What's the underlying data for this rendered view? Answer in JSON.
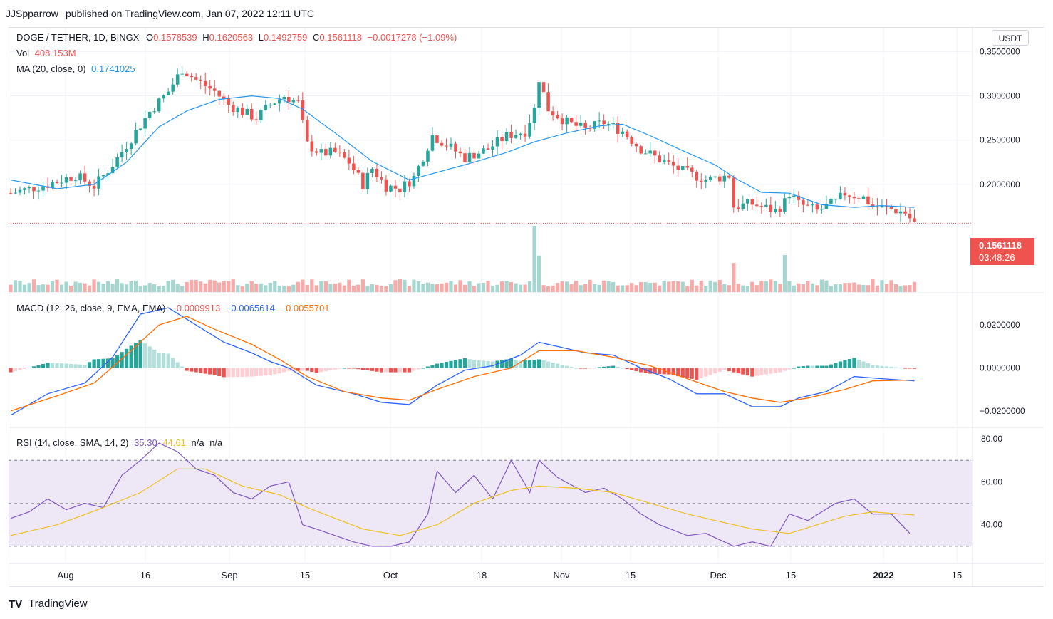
{
  "header": {
    "author": "JJSpparrow",
    "published": "published on TradingView.com, Jan 07, 2022 12:11 UTC"
  },
  "legend": {
    "symbol": "DOGE / TETHER, 1D, BINGX",
    "o_label": "O",
    "o_value": "0.1578539",
    "h_label": "H",
    "h_value": "0.1620563",
    "l_label": "L",
    "l_value": "0.1492759",
    "c_label": "C",
    "c_value": "0.1561118",
    "change": "−0.0017278 (−1.09%)",
    "vol_label": "Vol",
    "vol_value": "408.153M",
    "ma_label": "MA (20, close, 0)",
    "ma_value": "0.1741025",
    "macd_label": "MACD (12, 26, close, 9, EMA, EMA)",
    "macd_hist": "−0.0009913",
    "macd_line": "−0.0065614",
    "macd_signal": "−0.0055701",
    "rsi_label": "RSI (14, close, SMA, 14, 2)",
    "rsi_value": "35.30",
    "rsi_ma": "44.61",
    "rsi_na1": "n/a",
    "rsi_na2": "n/a"
  },
  "price_scale": {
    "currency": "USDT",
    "last_price": "0.1561118",
    "countdown": "03:48:26"
  },
  "footer": {
    "brand": "TradingView",
    "logo": "TV"
  },
  "colors": {
    "up": "#26a69a",
    "down": "#ef5350",
    "ma": "#2196f3",
    "macd": "#2962ff",
    "signal": "#ff6d00",
    "rsi": "#7e57c2",
    "rsi_ma": "#f0c020",
    "rsi_band": "#ede7f6"
  },
  "chart_data": [
    {
      "type": "candlestick",
      "title": "DOGE / TETHER, 1D, BINGX",
      "x_ticks": [
        "Aug",
        "16",
        "Sep",
        "15",
        "Oct",
        "18",
        "Nov",
        "15",
        "Dec",
        "15",
        "2022",
        "15"
      ],
      "y_ticks": [
        "0.3500000",
        "0.3000000",
        "0.2500000",
        "0.2000000"
      ],
      "ylim": [
        0.125,
        0.36
      ],
      "close_path": [
        [
          0,
          0.19
        ],
        [
          8,
          0.2
        ],
        [
          14,
          0.21
        ],
        [
          18,
          0.198
        ],
        [
          22,
          0.222
        ],
        [
          26,
          0.252
        ],
        [
          30,
          0.282
        ],
        [
          34,
          0.305
        ],
        [
          37,
          0.33
        ],
        [
          40,
          0.318
        ],
        [
          44,
          0.305
        ],
        [
          47,
          0.29
        ],
        [
          50,
          0.282
        ],
        [
          53,
          0.275
        ],
        [
          56,
          0.29
        ],
        [
          59,
          0.3
        ],
        [
          62,
          0.292
        ],
        [
          64,
          0.245
        ],
        [
          67,
          0.235
        ],
        [
          70,
          0.236
        ],
        [
          73,
          0.225
        ],
        [
          76,
          0.2
        ],
        [
          78,
          0.218
        ],
        [
          81,
          0.198
        ],
        [
          84,
          0.195
        ],
        [
          87,
          0.208
        ],
        [
          91,
          0.255
        ],
        [
          94,
          0.245
        ],
        [
          98,
          0.23
        ],
        [
          103,
          0.24
        ],
        [
          107,
          0.255
        ],
        [
          111,
          0.26
        ],
        [
          113,
          0.285
        ],
        [
          114,
          0.32
        ],
        [
          116,
          0.285
        ],
        [
          120,
          0.27
        ],
        [
          124,
          0.262
        ],
        [
          128,
          0.27
        ],
        [
          132,
          0.26
        ],
        [
          136,
          0.24
        ],
        [
          140,
          0.228
        ],
        [
          145,
          0.215
        ],
        [
          150,
          0.205
        ],
        [
          155,
          0.21
        ],
        [
          156,
          0.175
        ],
        [
          160,
          0.178
        ],
        [
          165,
          0.17
        ],
        [
          167,
          0.18
        ],
        [
          168,
          0.19
        ],
        [
          170,
          0.178
        ],
        [
          174,
          0.17
        ],
        [
          178,
          0.18
        ],
        [
          180,
          0.19
        ],
        [
          184,
          0.185
        ],
        [
          186,
          0.175
        ],
        [
          190,
          0.172
        ],
        [
          193,
          0.168
        ],
        [
          195,
          0.156
        ]
      ],
      "ma20_path": [
        [
          0,
          0.205
        ],
        [
          10,
          0.195
        ],
        [
          18,
          0.2
        ],
        [
          25,
          0.225
        ],
        [
          32,
          0.265
        ],
        [
          38,
          0.283
        ],
        [
          45,
          0.296
        ],
        [
          52,
          0.3
        ],
        [
          58,
          0.297
        ],
        [
          63,
          0.285
        ],
        [
          70,
          0.258
        ],
        [
          78,
          0.226
        ],
        [
          86,
          0.205
        ],
        [
          93,
          0.215
        ],
        [
          100,
          0.225
        ],
        [
          107,
          0.236
        ],
        [
          113,
          0.248
        ],
        [
          120,
          0.258
        ],
        [
          127,
          0.266
        ],
        [
          132,
          0.268
        ],
        [
          138,
          0.255
        ],
        [
          145,
          0.238
        ],
        [
          152,
          0.222
        ],
        [
          157,
          0.205
        ],
        [
          162,
          0.191
        ],
        [
          168,
          0.19
        ],
        [
          175,
          0.177
        ],
        [
          182,
          0.174
        ],
        [
          188,
          0.176
        ],
        [
          195,
          0.174
        ]
      ],
      "volume_spikes": [
        [
          113,
          1.0
        ],
        [
          114,
          0.55
        ],
        [
          156,
          0.44
        ],
        [
          167,
          0.56
        ]
      ],
      "ma_label": "MA (20, close, 0)",
      "ma_last": 0.1741025,
      "last": {
        "open": 0.1578539,
        "high": 0.1620563,
        "low": 0.1492759,
        "close": 0.1561118,
        "change": -0.0017278,
        "change_pct": -1.09
      },
      "volume_last": "408.153M"
    },
    {
      "type": "line",
      "title": "MACD (12, 26, close, 9, EMA, EMA)",
      "y_ticks": [
        "0.0200000",
        "0.0000000",
        "−0.0200000"
      ],
      "ylim": [
        -0.025,
        0.032
      ],
      "series": [
        {
          "name": "MACD",
          "color": "#2962ff",
          "points": [
            [
              0,
              -0.022
            ],
            [
              8,
              -0.012
            ],
            [
              16,
              -0.007
            ],
            [
              22,
              0.005
            ],
            [
              28,
              0.025
            ],
            [
              34,
              0.028
            ],
            [
              40,
              0.02
            ],
            [
              46,
              0.012
            ],
            [
              52,
              0.007
            ],
            [
              56,
              0.003
            ],
            [
              60,
              0.0
            ],
            [
              66,
              -0.008
            ],
            [
              74,
              -0.012
            ],
            [
              80,
              -0.016
            ],
            [
              86,
              -0.017
            ],
            [
              92,
              -0.008
            ],
            [
              98,
              -0.001
            ],
            [
              104,
              0.001
            ],
            [
              110,
              0.006
            ],
            [
              114,
              0.012
            ],
            [
              118,
              0.01
            ],
            [
              124,
              0.007
            ],
            [
              130,
              0.006
            ],
            [
              136,
              0.0
            ],
            [
              142,
              -0.005
            ],
            [
              148,
              -0.012
            ],
            [
              154,
              -0.012
            ],
            [
              160,
              -0.018
            ],
            [
              166,
              -0.018
            ],
            [
              170,
              -0.014
            ],
            [
              176,
              -0.011
            ],
            [
              182,
              -0.004
            ],
            [
              188,
              -0.005
            ],
            [
              195,
              -0.006
            ]
          ]
        },
        {
          "name": "Signal",
          "color": "#ff6d00",
          "points": [
            [
              0,
              -0.02
            ],
            [
              10,
              -0.013
            ],
            [
              18,
              -0.007
            ],
            [
              26,
              0.008
            ],
            [
              32,
              0.02
            ],
            [
              38,
              0.024
            ],
            [
              44,
              0.018
            ],
            [
              52,
              0.011
            ],
            [
              58,
              0.004
            ],
            [
              64,
              -0.004
            ],
            [
              72,
              -0.011
            ],
            [
              80,
              -0.014
            ],
            [
              86,
              -0.015
            ],
            [
              92,
              -0.01
            ],
            [
              100,
              -0.004
            ],
            [
              108,
              0.0
            ],
            [
              114,
              0.008
            ],
            [
              122,
              0.008
            ],
            [
              130,
              0.005
            ],
            [
              138,
              0.001
            ],
            [
              146,
              -0.005
            ],
            [
              154,
              -0.011
            ],
            [
              160,
              -0.014
            ],
            [
              166,
              -0.016
            ],
            [
              172,
              -0.014
            ],
            [
              180,
              -0.01
            ],
            [
              186,
              -0.006
            ],
            [
              195,
              -0.0056
            ]
          ]
        }
      ],
      "histogram_last": -0.0009913,
      "macd_last": -0.0065614,
      "signal_last": -0.0055701
    },
    {
      "type": "line",
      "title": "RSI (14, close, SMA, 14, 2)",
      "y_ticks": [
        "80.00",
        "60.00",
        "40.00"
      ],
      "ylim": [
        22,
        85
      ],
      "bands": [
        30,
        50,
        70
      ],
      "series": [
        {
          "name": "RSI",
          "color": "#7e57c2",
          "points": [
            [
              0,
              43
            ],
            [
              4,
              46
            ],
            [
              8,
              52
            ],
            [
              12,
              47
            ],
            [
              16,
              50
            ],
            [
              20,
              48
            ],
            [
              24,
              63
            ],
            [
              28,
              70
            ],
            [
              32,
              78
            ],
            [
              36,
              74
            ],
            [
              40,
              66
            ],
            [
              44,
              63
            ],
            [
              48,
              55
            ],
            [
              52,
              52
            ],
            [
              56,
              58
            ],
            [
              60,
              60
            ],
            [
              63,
              40
            ],
            [
              66,
              38
            ],
            [
              70,
              35
            ],
            [
              74,
              32
            ],
            [
              78,
              30
            ],
            [
              82,
              30
            ],
            [
              86,
              32
            ],
            [
              90,
              45
            ],
            [
              92,
              65
            ],
            [
              96,
              55
            ],
            [
              100,
              63
            ],
            [
              104,
              52
            ],
            [
              108,
              70
            ],
            [
              112,
              55
            ],
            [
              114,
              70
            ],
            [
              118,
              62
            ],
            [
              124,
              55
            ],
            [
              128,
              57
            ],
            [
              132,
              52
            ],
            [
              136,
              45
            ],
            [
              140,
              40
            ],
            [
              146,
              35
            ],
            [
              150,
              36
            ],
            [
              154,
              32
            ],
            [
              156,
              30
            ],
            [
              160,
              32
            ],
            [
              164,
              30
            ],
            [
              168,
              45
            ],
            [
              172,
              42
            ],
            [
              178,
              50
            ],
            [
              182,
              52
            ],
            [
              186,
              45
            ],
            [
              190,
              45
            ],
            [
              194,
              36
            ]
          ]
        },
        {
          "name": "RSI MA",
          "color": "#f0c020",
          "points": [
            [
              0,
              35
            ],
            [
              10,
              40
            ],
            [
              20,
              48
            ],
            [
              28,
              55
            ],
            [
              36,
              66
            ],
            [
              42,
              66
            ],
            [
              50,
              58
            ],
            [
              58,
              54
            ],
            [
              64,
              48
            ],
            [
              70,
              43
            ],
            [
              76,
              38
            ],
            [
              84,
              35
            ],
            [
              92,
              40
            ],
            [
              100,
              50
            ],
            [
              108,
              56
            ],
            [
              114,
              58
            ],
            [
              122,
              57
            ],
            [
              130,
              55
            ],
            [
              138,
              50
            ],
            [
              146,
              45
            ],
            [
              152,
              42
            ],
            [
              160,
              38
            ],
            [
              168,
              36
            ],
            [
              174,
              40
            ],
            [
              180,
              44
            ],
            [
              186,
              46
            ],
            [
              192,
              45
            ],
            [
              195,
              44.6
            ]
          ]
        }
      ],
      "rsi_last": 35.3,
      "rsi_ma_last": 44.61
    }
  ]
}
